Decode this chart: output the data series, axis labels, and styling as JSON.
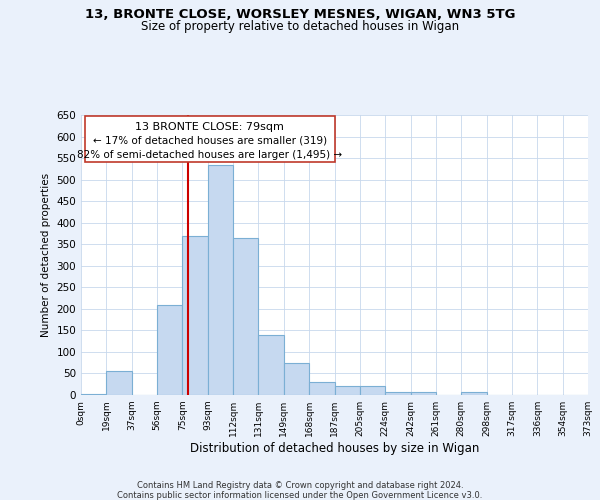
{
  "title": "13, BRONTE CLOSE, WORSLEY MESNES, WIGAN, WN3 5TG",
  "subtitle": "Size of property relative to detached houses in Wigan",
  "xlabel": "Distribution of detached houses by size in Wigan",
  "ylabel": "Number of detached properties",
  "bin_labels": [
    "0sqm",
    "19sqm",
    "37sqm",
    "56sqm",
    "75sqm",
    "93sqm",
    "112sqm",
    "131sqm",
    "149sqm",
    "168sqm",
    "187sqm",
    "205sqm",
    "224sqm",
    "242sqm",
    "261sqm",
    "280sqm",
    "298sqm",
    "317sqm",
    "336sqm",
    "354sqm",
    "373sqm"
  ],
  "bar_heights": [
    2,
    55,
    0,
    210,
    370,
    535,
    365,
    140,
    75,
    30,
    22,
    20,
    8,
    8,
    0,
    8,
    0,
    0,
    0,
    0
  ],
  "bar_color": "#c6d9f0",
  "bar_edge_color": "#7bafd4",
  "annotation_title": "13 BRONTE CLOSE: 79sqm",
  "annotation_line1": "← 17% of detached houses are smaller (319)",
  "annotation_line2": "82% of semi-detached houses are larger (1,495) →",
  "property_sqm": 79,
  "bin_start": [
    0,
    19,
    37,
    56,
    75,
    93,
    112,
    131,
    149,
    168,
    187,
    205,
    224,
    242,
    261,
    280,
    298,
    317,
    336,
    354
  ],
  "ylim": [
    0,
    650
  ],
  "yticks": [
    0,
    50,
    100,
    150,
    200,
    250,
    300,
    350,
    400,
    450,
    500,
    550,
    600,
    650
  ],
  "footnote1": "Contains HM Land Registry data © Crown copyright and database right 2024.",
  "footnote2": "Contains public sector information licensed under the Open Government Licence v3.0.",
  "bg_color": "#eaf1fb",
  "plot_bg_color": "#ffffff",
  "ann_box_color": "#c0392b",
  "red_line_color": "#cc0000"
}
